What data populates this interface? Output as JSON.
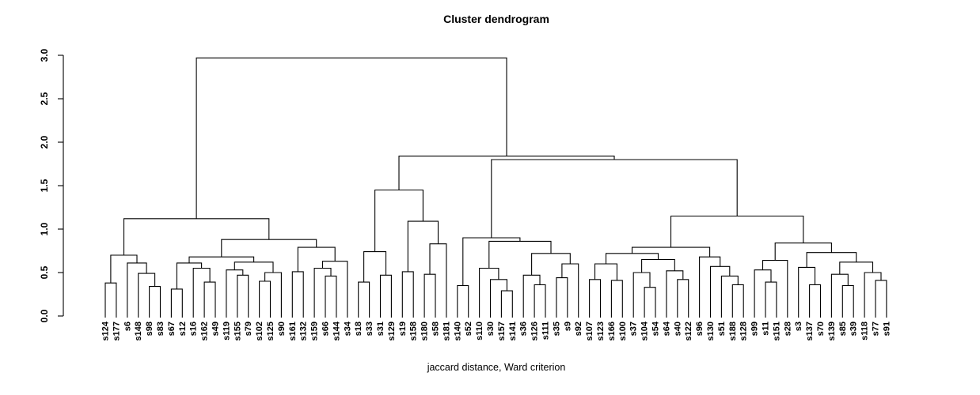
{
  "chart_data": {
    "type": "dendrogram",
    "title": "Cluster dendrogram",
    "xlabel": "jaccard distance, Ward criterion",
    "ylabel": "",
    "ylim": [
      0.0,
      3.0
    ],
    "yticks": [
      "0.0",
      "0.5",
      "1.0",
      "1.5",
      "2.0",
      "2.5",
      "3.0"
    ],
    "grid": false,
    "legend": false,
    "line_color": "#000000",
    "palette": {
      "c": "#00FFFF",
      "r": "#FF0000"
    },
    "leaves": [
      [
        "s124",
        "c"
      ],
      [
        "s177",
        "c"
      ],
      [
        "s6",
        "r"
      ],
      [
        "s148",
        "c"
      ],
      [
        "s98",
        "r"
      ],
      [
        "s83",
        "r"
      ],
      [
        "s67",
        "c"
      ],
      [
        "s12",
        "c"
      ],
      [
        "s16",
        "r"
      ],
      [
        "s162",
        "r"
      ],
      [
        "s49",
        "c"
      ],
      [
        "s119",
        "r"
      ],
      [
        "s155",
        "r"
      ],
      [
        "s79",
        "r"
      ],
      [
        "s102",
        "r"
      ],
      [
        "s125",
        "c"
      ],
      [
        "s90",
        "r"
      ],
      [
        "s161",
        "r"
      ],
      [
        "s132",
        "r"
      ],
      [
        "s159",
        "c"
      ],
      [
        "s66",
        "c"
      ],
      [
        "s144",
        "r"
      ],
      [
        "s34",
        "r"
      ],
      [
        "s18",
        "r"
      ],
      [
        "s33",
        "r"
      ],
      [
        "s31",
        "r"
      ],
      [
        "s129",
        "r"
      ],
      [
        "s19",
        "r"
      ],
      [
        "s158",
        "c"
      ],
      [
        "s180",
        "r"
      ],
      [
        "s58",
        "r"
      ],
      [
        "s181",
        "r"
      ],
      [
        "s140",
        "c"
      ],
      [
        "s52",
        "c"
      ],
      [
        "s110",
        "c"
      ],
      [
        "s30",
        "c"
      ],
      [
        "s157",
        "c"
      ],
      [
        "s141",
        "c"
      ],
      [
        "s36",
        "c"
      ],
      [
        "s126",
        "r"
      ],
      [
        "s111",
        "c"
      ],
      [
        "s35",
        "r"
      ],
      [
        "s9",
        "c"
      ],
      [
        "s92",
        "r"
      ],
      [
        "s107",
        "c"
      ],
      [
        "s123",
        "c"
      ],
      [
        "s166",
        "r"
      ],
      [
        "s100",
        "r"
      ],
      [
        "s37",
        "r"
      ],
      [
        "s104",
        "c"
      ],
      [
        "s54",
        "c"
      ],
      [
        "s64",
        "r"
      ],
      [
        "s40",
        "c"
      ],
      [
        "s122",
        "c"
      ],
      [
        "s96",
        "r"
      ],
      [
        "s130",
        "c"
      ],
      [
        "s51",
        "r"
      ],
      [
        "s188",
        "c"
      ],
      [
        "s128",
        "c"
      ],
      [
        "s99",
        "r"
      ],
      [
        "s11",
        "r"
      ],
      [
        "s151",
        "r"
      ],
      [
        "s28",
        "r"
      ],
      [
        "s3",
        "c"
      ],
      [
        "s137",
        "c"
      ],
      [
        "s70",
        "c"
      ],
      [
        "s139",
        "c"
      ],
      [
        "s85",
        "c"
      ],
      [
        "s39",
        "r"
      ],
      [
        "s118",
        "c"
      ],
      [
        "s77",
        "r"
      ],
      [
        "s91",
        "c"
      ]
    ],
    "tree": {
      "h": 2.97,
      "c": [
        {
          "h": 1.12,
          "c": [
            {
              "h": 0.7,
              "c": [
                {
                  "h": 0.38,
                  "c": [
                    0,
                    1
                  ]
                },
                {
                  "h": 0.61,
                  "c": [
                    2,
                    {
                      "h": 0.49,
                      "c": [
                        3,
                        {
                          "h": 0.34,
                          "c": [
                            4,
                            5
                          ]
                        }
                      ]
                    }
                  ]
                }
              ]
            },
            {
              "h": 0.88,
              "c": [
                {
                  "h": 0.68,
                  "c": [
                    {
                      "h": 0.61,
                      "c": [
                        {
                          "h": 0.31,
                          "c": [
                            6,
                            7
                          ]
                        },
                        {
                          "h": 0.55,
                          "c": [
                            8,
                            {
                              "h": 0.39,
                              "c": [
                                9,
                                10
                              ]
                            }
                          ]
                        }
                      ]
                    },
                    {
                      "h": 0.62,
                      "c": [
                        {
                          "h": 0.53,
                          "c": [
                            11,
                            {
                              "h": 0.47,
                              "c": [
                                12,
                                13
                              ]
                            }
                          ]
                        },
                        {
                          "h": 0.5,
                          "c": [
                            {
                              "h": 0.4,
                              "c": [
                                14,
                                15
                              ]
                            },
                            16
                          ]
                        }
                      ]
                    }
                  ]
                },
                {
                  "h": 0.79,
                  "c": [
                    {
                      "h": 0.51,
                      "c": [
                        17,
                        18
                      ]
                    },
                    {
                      "h": 0.63,
                      "c": [
                        {
                          "h": 0.55,
                          "c": [
                            19,
                            {
                              "h": 0.46,
                              "c": [
                                20,
                                21
                              ]
                            }
                          ]
                        },
                        22
                      ]
                    }
                  ]
                }
              ]
            }
          ]
        },
        {
          "h": 1.84,
          "c": [
            {
              "h": 1.45,
              "c": [
                {
                  "h": 0.74,
                  "c": [
                    {
                      "h": 0.39,
                      "c": [
                        23,
                        24
                      ]
                    },
                    {
                      "h": 0.47,
                      "c": [
                        25,
                        26
                      ]
                    }
                  ]
                },
                {
                  "h": 1.09,
                  "c": [
                    {
                      "h": 0.51,
                      "c": [
                        27,
                        28
                      ]
                    },
                    {
                      "h": 0.83,
                      "c": [
                        {
                          "h": 0.48,
                          "c": [
                            29,
                            30
                          ]
                        },
                        31
                      ]
                    }
                  ]
                }
              ]
            },
            {
              "h": 1.8,
              "c": [
                {
                  "h": 0.9,
                  "c": [
                    {
                      "h": 0.35,
                      "c": [
                        32,
                        33
                      ]
                    },
                    {
                      "h": 0.86,
                      "c": [
                        {
                          "h": 0.55,
                          "c": [
                            34,
                            {
                              "h": 0.42,
                              "c": [
                                35,
                                {
                                  "h": 0.29,
                                  "c": [
                                    36,
                                    37
                                  ]
                                }
                              ]
                            }
                          ]
                        },
                        {
                          "h": 0.72,
                          "c": [
                            {
                              "h": 0.47,
                              "c": [
                                38,
                                {
                                  "h": 0.36,
                                  "c": [
                                    39,
                                    40
                                  ]
                                }
                              ]
                            },
                            {
                              "h": 0.6,
                              "c": [
                                {
                                  "h": 0.44,
                                  "c": [
                                    41,
                                    42
                                  ]
                                },
                                43
                              ]
                            }
                          ]
                        }
                      ]
                    }
                  ]
                },
                {
                  "h": 1.15,
                  "c": [
                    {
                      "h": 0.79,
                      "c": [
                        {
                          "h": 0.72,
                          "c": [
                            {
                              "h": 0.6,
                              "c": [
                                {
                                  "h": 0.42,
                                  "c": [
                                    44,
                                    45
                                  ]
                                },
                                {
                                  "h": 0.41,
                                  "c": [
                                    46,
                                    47
                                  ]
                                }
                              ]
                            },
                            {
                              "h": 0.65,
                              "c": [
                                {
                                  "h": 0.5,
                                  "c": [
                                    48,
                                    {
                                      "h": 0.33,
                                      "c": [
                                        49,
                                        50
                                      ]
                                    }
                                  ]
                                },
                                {
                                  "h": 0.52,
                                  "c": [
                                    51,
                                    {
                                      "h": 0.42,
                                      "c": [
                                        52,
                                        53
                                      ]
                                    }
                                  ]
                                }
                              ]
                            }
                          ]
                        },
                        {
                          "h": 0.68,
                          "c": [
                            54,
                            {
                              "h": 0.57,
                              "c": [
                                55,
                                {
                                  "h": 0.46,
                                  "c": [
                                    56,
                                    {
                                      "h": 0.36,
                                      "c": [
                                        57,
                                        58
                                      ]
                                    }
                                  ]
                                }
                              ]
                            }
                          ]
                        }
                      ]
                    },
                    {
                      "h": 0.84,
                      "c": [
                        {
                          "h": 0.64,
                          "c": [
                            {
                              "h": 0.53,
                              "c": [
                                59,
                                {
                                  "h": 0.39,
                                  "c": [
                                    60,
                                    61
                                  ]
                                }
                              ]
                            },
                            62
                          ]
                        },
                        {
                          "h": 0.73,
                          "c": [
                            {
                              "h": 0.56,
                              "c": [
                                63,
                                {
                                  "h": 0.36,
                                  "c": [
                                    64,
                                    65
                                  ]
                                }
                              ]
                            },
                            {
                              "h": 0.62,
                              "c": [
                                {
                                  "h": 0.48,
                                  "c": [
                                    66,
                                    {
                                      "h": 0.35,
                                      "c": [
                                        67,
                                        68
                                      ]
                                    }
                                  ]
                                },
                                {
                                  "h": 0.5,
                                  "c": [
                                    69,
                                    {
                                      "h": 0.41,
                                      "c": [
                                        70,
                                        71
                                      ]
                                    }
                                  ]
                                }
                              ]
                            }
                          ]
                        }
                      ]
                    }
                  ]
                }
              ]
            }
          ]
        }
      ]
    }
  }
}
